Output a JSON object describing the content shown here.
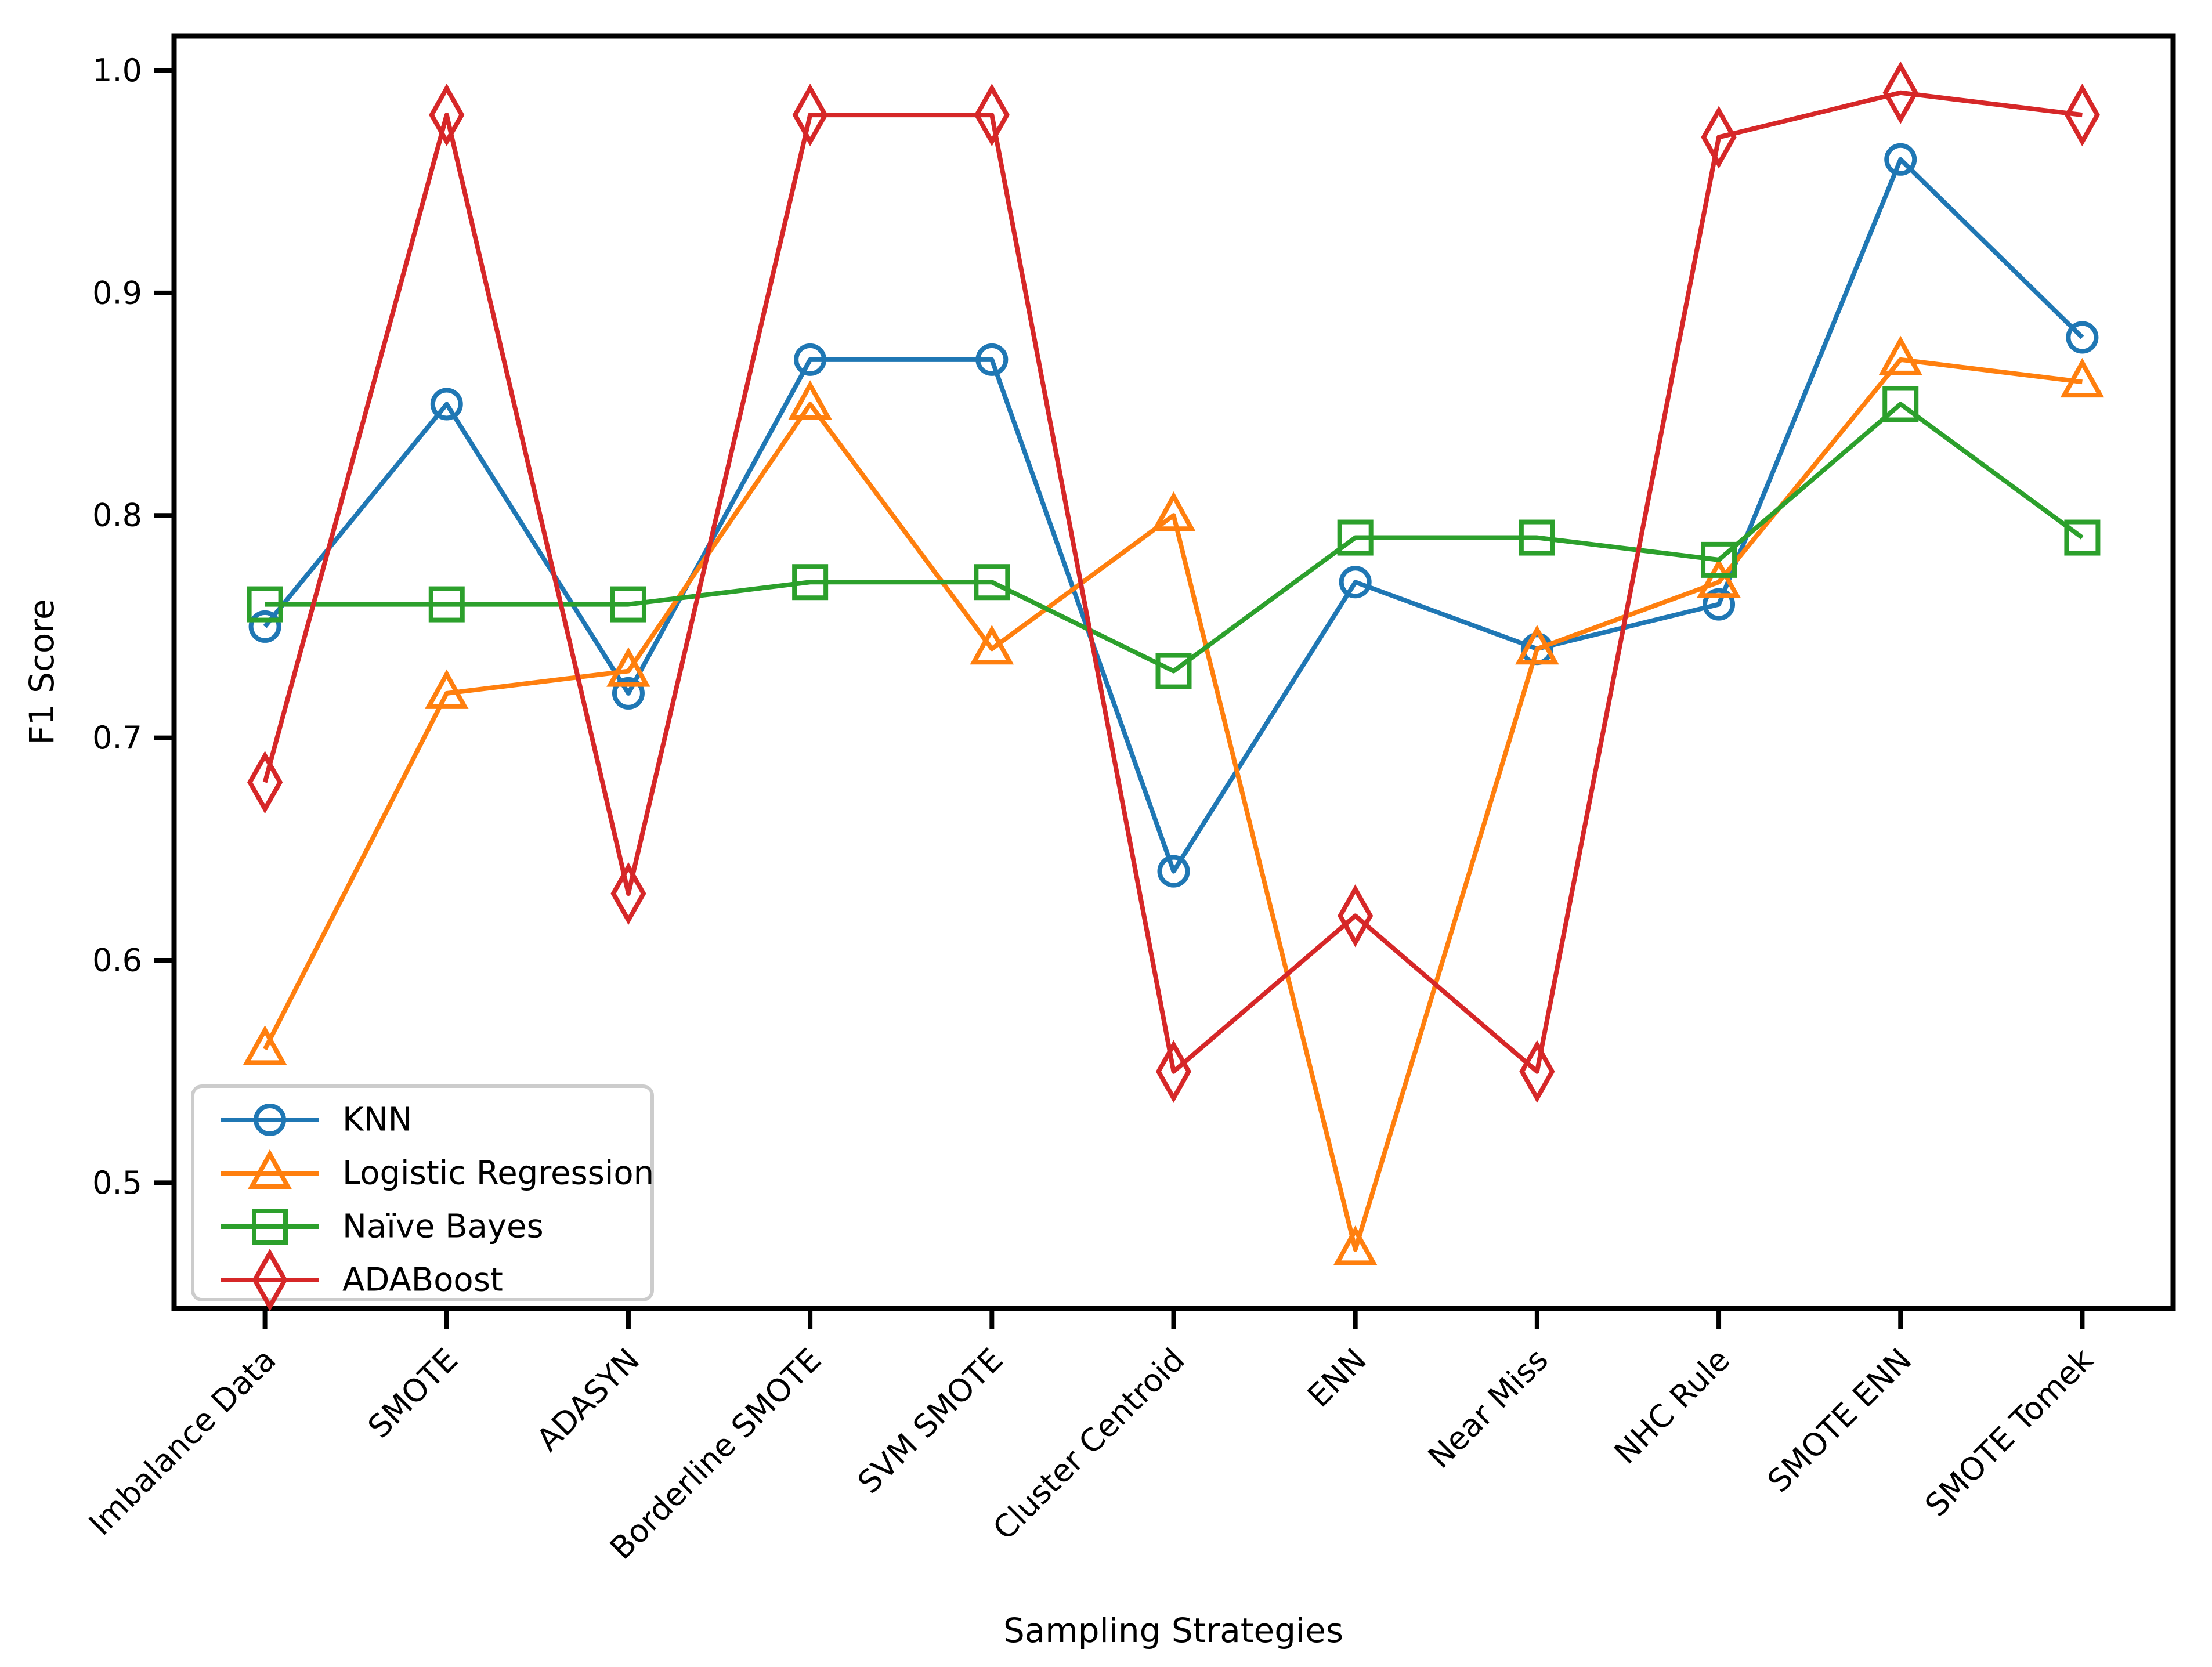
{
  "figure": {
    "background": "#ffffff",
    "xlabel": "Sampling Strategies",
    "ylabel": "F1 Score"
  },
  "chart_data": {
    "type": "line",
    "title": "",
    "xlabel": "Sampling Strategies",
    "ylabel": "F1 Score",
    "categories": [
      "Imbalance Data",
      "SMOTE",
      "ADASYN",
      "Borderline SMOTE",
      "SVM SMOTE",
      "Cluster Centroid",
      "ENN",
      "Near Miss",
      "NHC Rule",
      "SMOTE ENN",
      "SMOTE Tomek"
    ],
    "series": [
      {
        "name": "KNN",
        "color": "#1f77b4",
        "marker": "circle",
        "values": [
          0.75,
          0.85,
          0.72,
          0.87,
          0.87,
          0.64,
          0.77,
          0.74,
          0.76,
          0.96,
          0.88
        ]
      },
      {
        "name": "Logistic Regression",
        "color": "#ff7f0e",
        "marker": "triangle-up",
        "values": [
          0.56,
          0.72,
          0.73,
          0.85,
          0.74,
          0.8,
          0.47,
          0.74,
          0.77,
          0.87,
          0.86
        ]
      },
      {
        "name": "Naïve Bayes",
        "color": "#2ca02c",
        "marker": "square",
        "values": [
          0.76,
          0.76,
          0.76,
          0.77,
          0.77,
          0.73,
          0.79,
          0.79,
          0.78,
          0.85,
          0.79
        ]
      },
      {
        "name": "ADABoost",
        "color": "#d62728",
        "marker": "thin-diamond",
        "values": [
          0.68,
          0.98,
          0.63,
          0.98,
          0.98,
          0.55,
          0.62,
          0.55,
          0.97,
          0.99,
          0.98
        ]
      }
    ],
    "yticks": [
      0.5,
      0.6,
      0.7,
      0.8,
      0.9,
      1.0
    ],
    "ylim": [
      0.4435,
      1.0155
    ],
    "grid": false,
    "legend_position": "lower-left",
    "legend_border_color": "#cccccc",
    "x_tick_label_rotation_deg": 45
  }
}
